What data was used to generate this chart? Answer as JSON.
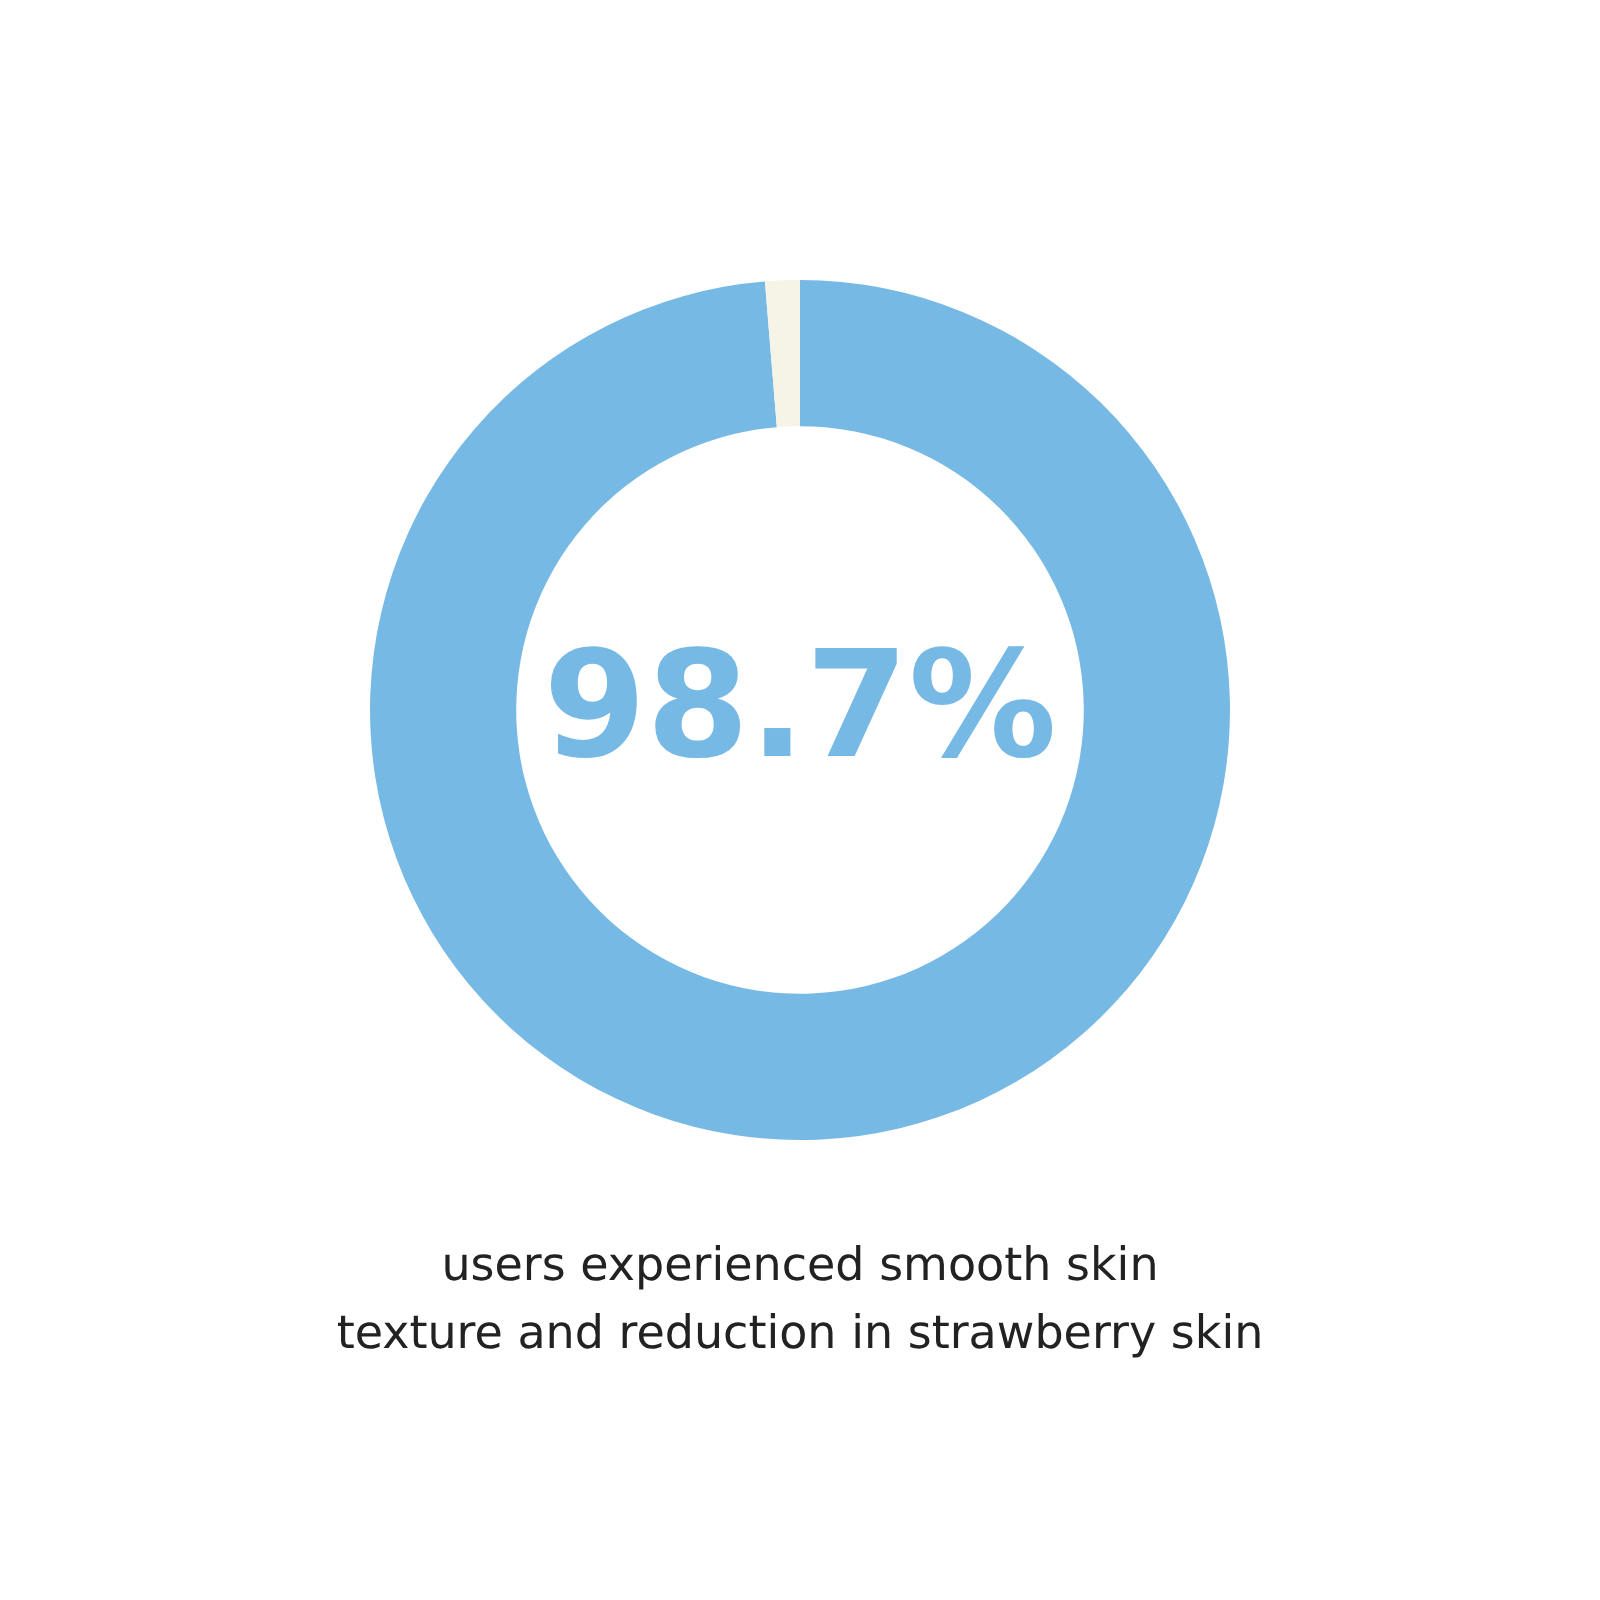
{
  "chart_data": {
    "type": "donut",
    "categories": [
      null,
      null
    ],
    "values": [
      98.7,
      1.3
    ],
    "colors": [
      "#77b9e5",
      "#f6f4e6"
    ],
    "value_labels": [
      "98.7%",
      null
    ],
    "annotations": [
      "users experienced smooth skin\ntexture and reduction in strawberry skin"
    ]
  }
}
